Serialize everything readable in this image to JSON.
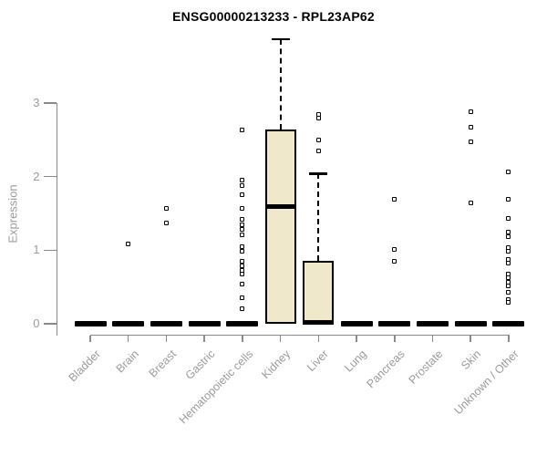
{
  "chart_data": {
    "type": "boxplot",
    "title": "ENSG00000213233 - RPL23AP62",
    "ylabel": "Expression",
    "xlabel": "",
    "ylim": [
      0,
      3
    ],
    "yticks": [
      0,
      1,
      2,
      3
    ],
    "grid": false,
    "legend": null,
    "categories": [
      "Bladder",
      "Brain",
      "Breast",
      "Gastric",
      "Hematopoietic cells",
      "Kidney",
      "Liver",
      "Lung",
      "Pancreas",
      "Prostate",
      "Skin",
      "Unknown / Other"
    ],
    "boxes": [
      {
        "category": "Bladder",
        "q1": 0,
        "median": 0,
        "q3": 0,
        "whisker_high": null,
        "outliers": []
      },
      {
        "category": "Brain",
        "q1": 0,
        "median": 0,
        "q3": 0,
        "whisker_high": null,
        "outliers": [
          1.09
        ]
      },
      {
        "category": "Breast",
        "q1": 0,
        "median": 0,
        "q3": 0,
        "whisker_high": null,
        "outliers": [
          1.57,
          1.37
        ]
      },
      {
        "category": "Gastric",
        "q1": 0,
        "median": 0,
        "q3": 0,
        "whisker_high": null,
        "outliers": []
      },
      {
        "category": "Hematopoietic cells",
        "q1": 0,
        "median": 0,
        "q3": 0,
        "whisker_high": null,
        "outliers": [
          2.63,
          1.95,
          1.88,
          1.76,
          1.57,
          1.42,
          1.35,
          1.28,
          1.21,
          1.05,
          0.99,
          0.85,
          0.79,
          0.73,
          0.67,
          0.54,
          0.35,
          0.2
        ]
      },
      {
        "category": "Kidney",
        "q1": 0,
        "median": 1.59,
        "q3": 2.64,
        "whisker_high": 3.87,
        "outliers": []
      },
      {
        "category": "Liver",
        "q1": 0,
        "median": 0.02,
        "q3": 0.86,
        "whisker_high": 2.04,
        "outliers": [
          2.85,
          2.79,
          2.5,
          2.35
        ]
      },
      {
        "category": "Lung",
        "q1": 0,
        "median": 0,
        "q3": 0,
        "whisker_high": null,
        "outliers": []
      },
      {
        "category": "Pancreas",
        "q1": 0,
        "median": 0,
        "q3": 0,
        "whisker_high": null,
        "outliers": [
          1.69,
          1.01,
          0.85
        ]
      },
      {
        "category": "Prostate",
        "q1": 0,
        "median": 0,
        "q3": 0,
        "whisker_high": null,
        "outliers": []
      },
      {
        "category": "Skin",
        "q1": 0,
        "median": 0,
        "q3": 0,
        "whisker_high": null,
        "outliers": [
          2.88,
          2.67,
          2.47,
          1.64
        ]
      },
      {
        "category": "Unknown / Other",
        "q1": 0,
        "median": 0,
        "q3": 0,
        "whisker_high": null,
        "outliers": [
          2.06,
          1.69,
          1.43,
          1.24,
          1.18,
          1.04,
          0.98,
          0.88,
          0.83,
          0.68,
          0.62,
          0.56,
          0.52,
          0.43,
          0.33,
          0.29
        ]
      }
    ],
    "colors": {
      "box_fill": "#efe8cb",
      "box_stroke": "#000000",
      "axis": "#8a8a8a",
      "tick_label": "#9b9b9b",
      "title": "#000000"
    }
  }
}
